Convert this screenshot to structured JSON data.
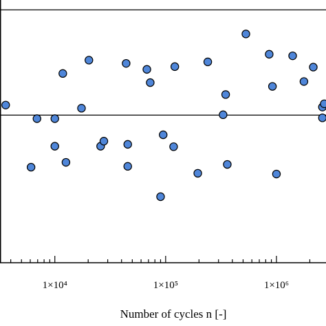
{
  "chart_data": {
    "type": "scatter",
    "xlabel": "Number of cycles n [-]",
    "xscale": "log",
    "xlim": [
      3200,
      2800000
    ],
    "ylim": [
      0,
      1
    ],
    "xticks": [
      {
        "value": 10000,
        "label": "1×10⁴"
      },
      {
        "value": 100000,
        "label": "1×10⁵"
      },
      {
        "value": 1000000,
        "label": "1×10⁶"
      }
    ],
    "hlines": [
      0.9624,
      0.5619
    ],
    "marker": {
      "fill": "#4f86d9",
      "stroke": "#000000"
    },
    "series": [
      {
        "points": [
          {
            "x": 3600,
            "y": 0.6
          },
          {
            "x": 6100,
            "y": 0.3636
          },
          {
            "x": 6900,
            "y": 0.5484
          },
          {
            "x": 10000,
            "y": 0.5484
          },
          {
            "x": 10000,
            "y": 0.4434
          },
          {
            "x": 11800,
            "y": 0.7203
          },
          {
            "x": 12600,
            "y": 0.3821
          },
          {
            "x": 17400,
            "y": 0.5881
          },
          {
            "x": 20300,
            "y": 0.771
          },
          {
            "x": 25900,
            "y": 0.4434
          },
          {
            "x": 27700,
            "y": 0.4627
          },
          {
            "x": 44000,
            "y": 0.7587
          },
          {
            "x": 45500,
            "y": 0.4506
          },
          {
            "x": 45500,
            "y": 0.3669
          },
          {
            "x": 67700,
            "y": 0.7359
          },
          {
            "x": 72600,
            "y": 0.6856
          },
          {
            "x": 90000,
            "y": 0.2513
          },
          {
            "x": 95000,
            "y": 0.4869
          },
          {
            "x": 118000,
            "y": 0.4416
          },
          {
            "x": 121000,
            "y": 0.7464
          },
          {
            "x": 195000,
            "y": 0.3405
          },
          {
            "x": 240000,
            "y": 0.7645
          },
          {
            "x": 330000,
            "y": 0.5632
          },
          {
            "x": 348000,
            "y": 0.6402
          },
          {
            "x": 360000,
            "y": 0.3742
          },
          {
            "x": 530000,
            "y": 0.8708
          },
          {
            "x": 860000,
            "y": 0.7935
          },
          {
            "x": 920000,
            "y": 0.6711
          },
          {
            "x": 1000000,
            "y": 0.3376
          },
          {
            "x": 1400000,
            "y": 0.7875
          },
          {
            "x": 1770000,
            "y": 0.6897
          },
          {
            "x": 2150000,
            "y": 0.7445
          },
          {
            "x": 2600000,
            "y": 0.5925
          },
          {
            "x": 2700000,
            "y": 0.6049
          },
          {
            "x": 2600000,
            "y": 0.5515
          }
        ]
      }
    ]
  }
}
